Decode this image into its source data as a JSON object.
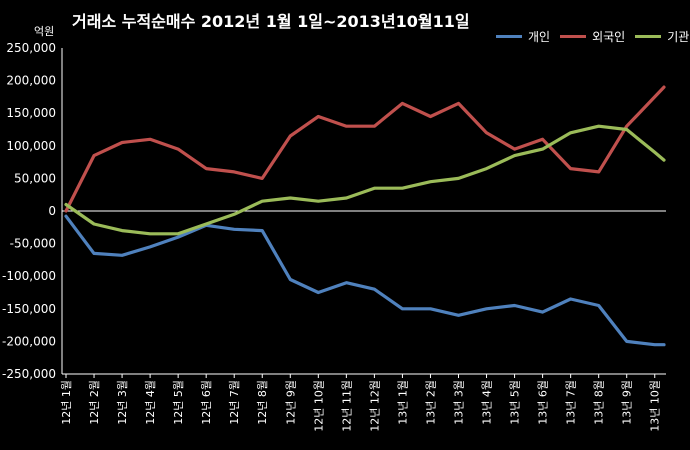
{
  "chart_data": {
    "type": "line",
    "title": "거래소  누적순매수 2012년 1월 1일~2013년10월11일",
    "y_unit_label": "억원",
    "ylim": [
      -250000,
      250000
    ],
    "y_ticks": [
      -250000,
      -200000,
      -150000,
      -100000,
      -50000,
      0,
      50000,
      100000,
      150000,
      200000,
      250000
    ],
    "y_tick_labels": [
      "-250,000",
      "-200,000",
      "-150,000",
      "-100,000",
      "-50,000",
      "0",
      "50,000",
      "100,000",
      "150,000",
      "200,000",
      "250,000"
    ],
    "x_tick_labels": [
      "12년 1월",
      "12년 2월",
      "12년 3월",
      "12년 4월",
      "12년 5월",
      "12년 6월",
      "12년 7월",
      "12년 8월",
      "12년 9월",
      "12년 10월",
      "12년 11월",
      "12년 12월",
      "13년 1월",
      "13년 2월",
      "13년 3월",
      "13년 4월",
      "13년 5월",
      "13년 6월",
      "13년 7월",
      "13년 8월",
      "13년 9월",
      "13년 10월"
    ],
    "x_positions": [
      0,
      1,
      2,
      3,
      4,
      5,
      6,
      7,
      8,
      9,
      10,
      11,
      12,
      13,
      14,
      15,
      16,
      17,
      18,
      19,
      20,
      21,
      21.33
    ],
    "legend_position": "top-right",
    "grid": false,
    "series": [
      {
        "name": "개인",
        "color": "#4F81BD",
        "values": [
          -8000,
          -65000,
          -68000,
          -55000,
          -40000,
          -22000,
          -28000,
          -30000,
          -105000,
          -125000,
          -110000,
          -120000,
          -150000,
          -150000,
          -160000,
          -150000,
          -145000,
          -155000,
          -135000,
          -145000,
          -200000,
          -205000,
          -205000
        ]
      },
      {
        "name": "외국인",
        "color": "#C0504D",
        "values": [
          0,
          85000,
          105000,
          110000,
          95000,
          65000,
          60000,
          50000,
          115000,
          145000,
          130000,
          130000,
          165000,
          145000,
          165000,
          120000,
          95000,
          110000,
          65000,
          60000,
          130000,
          175000,
          190000
        ]
      },
      {
        "name": "기관",
        "color": "#9BBB59",
        "values": [
          10000,
          -20000,
          -30000,
          -35000,
          -35000,
          -20000,
          -5000,
          15000,
          20000,
          15000,
          20000,
          35000,
          35000,
          45000,
          50000,
          65000,
          85000,
          95000,
          120000,
          130000,
          125000,
          90000,
          78000
        ]
      }
    ]
  }
}
